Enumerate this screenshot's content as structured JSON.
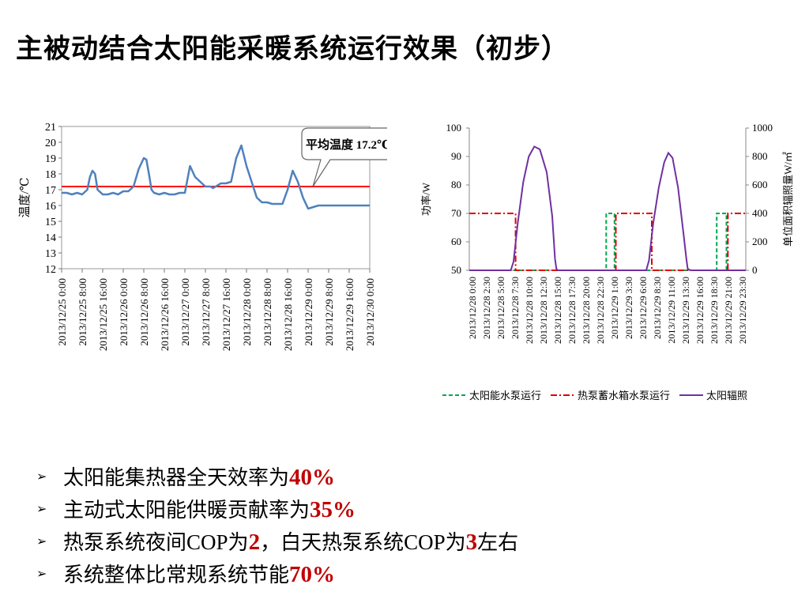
{
  "title": "主被动结合太阳能采暖系统运行效果（初步）",
  "bullets": [
    {
      "parts": [
        {
          "t": "太阳能集热器全天效率为",
          "s": "n"
        },
        {
          "t": "40%",
          "s": "h"
        }
      ]
    },
    {
      "parts": [
        {
          "t": "主动式太阳能供暖贡献率为",
          "s": "n"
        },
        {
          "t": "35%",
          "s": "h"
        }
      ]
    },
    {
      "parts": [
        {
          "t": "热泵系统夜间",
          "s": "n"
        },
        {
          "t": "COP",
          "s": "s"
        },
        {
          "t": "为",
          "s": "n"
        },
        {
          "t": "2",
          "s": "h"
        },
        {
          "t": "，白天热泵系统",
          "s": "n"
        },
        {
          "t": "COP",
          "s": "s"
        },
        {
          "t": "为",
          "s": "n"
        },
        {
          "t": "3",
          "s": "h"
        },
        {
          "t": "左右",
          "s": "n"
        }
      ]
    },
    {
      "parts": [
        {
          "t": "系统整体比常规系统节能",
          "s": "n"
        },
        {
          "t": "70%",
          "s": "h"
        }
      ]
    }
  ],
  "chart_data": [
    {
      "type": "line",
      "ylabel": "温度/℃",
      "ylim": [
        12,
        21
      ],
      "yticks": [
        "12",
        "13",
        "14",
        "15",
        "16",
        "17",
        "18",
        "19",
        "20",
        "21"
      ],
      "xlabels": [
        "2013/12/25 0:00",
        "2013/12/25 8:00",
        "2013/12/25 16:00",
        "2013/12/26 0:00",
        "2013/12/26 8:00",
        "2013/12/26 16:00",
        "2013/12/27 0:00",
        "2013/12/27 8:00",
        "2013/12/27 16:00",
        "2013/12/28 0:00",
        "2013/12/28 8:00",
        "2013/12/28 16:00",
        "2013/12/29 0:00",
        "2013/12/29 8:00",
        "2013/12/29 16:00",
        "2013/12/30 0:00"
      ],
      "series": [
        {
          "color": "#4f81bd",
          "x": [
            0,
            2,
            4,
            6,
            8,
            10,
            11,
            12,
            13,
            14,
            16,
            18,
            20,
            22,
            24,
            26,
            28,
            30,
            32,
            33,
            34,
            35,
            36,
            38,
            40,
            42,
            44,
            46,
            48,
            50,
            52,
            54,
            56,
            57,
            58,
            59,
            60,
            61,
            62,
            64,
            66,
            68,
            70,
            72,
            74,
            76,
            78,
            80,
            82,
            84,
            86,
            88,
            90,
            92,
            94,
            96,
            98,
            100,
            102,
            104,
            106,
            108,
            110,
            112,
            114,
            116,
            118,
            120
          ],
          "y": [
            16.8,
            16.8,
            16.7,
            16.8,
            16.7,
            17.0,
            17.8,
            18.2,
            18.0,
            17.0,
            16.7,
            16.7,
            16.8,
            16.7,
            16.9,
            16.9,
            17.2,
            18.3,
            19.0,
            18.9,
            18.0,
            17.0,
            16.8,
            16.7,
            16.8,
            16.7,
            16.7,
            16.8,
            16.8,
            18.5,
            17.8,
            17.5,
            17.2,
            17.2,
            17.2,
            17.1,
            17.2,
            17.3,
            17.4,
            17.4,
            17.5,
            19.0,
            19.8,
            18.5,
            17.5,
            16.5,
            16.2,
            16.2,
            16.1,
            16.1,
            16.1,
            17.0,
            18.2,
            17.5,
            16.5,
            15.8,
            15.9,
            16.0,
            16.0,
            16.0,
            16.0,
            16.0,
            16.0,
            16.0,
            16.0,
            16.0,
            16.0,
            16.0
          ]
        }
      ],
      "ref_line": {
        "value": 17.2,
        "color": "#ff0000"
      },
      "annotation": {
        "text": "平均温度 17.2℃"
      }
    },
    {
      "type": "line",
      "ylabel": "功率/W",
      "y2label": "单位面积辐照量W/㎡",
      "ylim": [
        50,
        100
      ],
      "y2lim": [
        0,
        1000
      ],
      "yticks": [
        "50",
        "60",
        "70",
        "80",
        "90",
        "100"
      ],
      "y2ticks": [
        "0",
        "200",
        "400",
        "600",
        "800",
        "1000"
      ],
      "xlabels": [
        "2013/12/28 0:00",
        "2013/12/28 2:30",
        "2013/12/28 5:00",
        "2013/12/28 7:30",
        "2013/12/28 10:00",
        "2013/12/28 12:30",
        "2013/12/28 15:00",
        "2013/12/28 17:30",
        "2013/12/28 20:00",
        "2013/12/28 22:30",
        "2013/12/29 1:00",
        "2013/12/29 3:30",
        "2013/12/29 6:00",
        "2013/12/29 8:30",
        "2013/12/29 11:00",
        "2013/12/29 13:30",
        "2013/12/29 16:00",
        "2013/12/29 18:30",
        "2013/12/29 21:00",
        "2013/12/29 23:30"
      ],
      "legend_position": "bottom",
      "series": [
        {
          "name": "太阳能水泵运行",
          "color": "#00a84f",
          "dash": "dash",
          "x": [
            0,
            9.9,
            9.9,
            10.5,
            10.5,
            17.9,
            17.9,
            18.6,
            18.6,
            20
          ],
          "y": [
            50,
            50,
            70,
            70,
            50,
            50,
            70,
            70,
            50,
            50
          ]
        },
        {
          "name": "热泵蓄水箱水泵运行",
          "color": "#e00000",
          "dash": "dashdot",
          "x": [
            0,
            3.35,
            3.35,
            10.6,
            10.6,
            13.2,
            13.2,
            18.7,
            18.7,
            20
          ],
          "y": [
            70,
            70,
            50,
            50,
            70,
            70,
            50,
            50,
            70,
            70
          ]
        },
        {
          "name": "太阳辐照",
          "color": "#7030a0",
          "dash": "solid",
          "axis": "right",
          "x": [
            0,
            3.0,
            3.2,
            3.5,
            3.9,
            4.3,
            4.7,
            5.1,
            5.6,
            6.0,
            6.2,
            6.3,
            6.4,
            12.8,
            13.0,
            13.3,
            13.7,
            14.1,
            14.4,
            14.7,
            15.1,
            15.5,
            15.7,
            15.8,
            16.0,
            20
          ],
          "y": [
            0,
            0,
            60,
            330,
            620,
            800,
            870,
            850,
            690,
            380,
            80,
            10,
            0,
            0,
            70,
            330,
            580,
            760,
            825,
            790,
            580,
            250,
            80,
            10,
            0,
            0
          ]
        }
      ]
    }
  ]
}
